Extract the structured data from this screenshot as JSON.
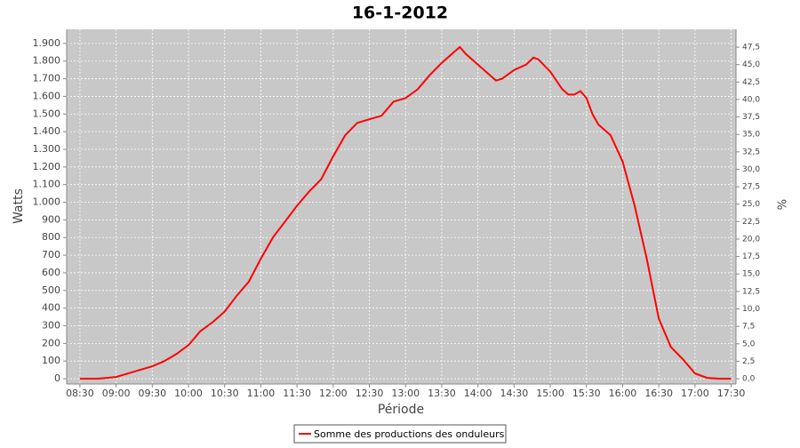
{
  "chart_data": {
    "type": "line",
    "title": "16-1-2012",
    "x_label": "Période",
    "y_label": "Watts",
    "y2_label": "%",
    "x": [
      "08:30",
      "08:45",
      "09:00",
      "09:10",
      "09:20",
      "09:30",
      "09:40",
      "09:50",
      "10:00",
      "10:10",
      "10:20",
      "10:30",
      "10:40",
      "10:50",
      "11:00",
      "11:10",
      "11:20",
      "11:30",
      "11:40",
      "11:50",
      "12:00",
      "12:10",
      "12:20",
      "12:30",
      "12:40",
      "12:50",
      "13:00",
      "13:10",
      "13:20",
      "13:30",
      "13:40",
      "13:45",
      "13:50",
      "14:00",
      "14:10",
      "14:15",
      "14:20",
      "14:30",
      "14:40",
      "14:46",
      "14:50",
      "15:00",
      "15:10",
      "15:15",
      "15:20",
      "15:25",
      "15:30",
      "15:35",
      "15:40",
      "15:50",
      "16:00",
      "16:10",
      "16:20",
      "16:30",
      "16:40",
      "16:50",
      "17:00",
      "17:10",
      "17:20",
      "17:30"
    ],
    "series": [
      {
        "name": "Somme des productions des onduleurs",
        "color": "#ff0000",
        "values": [
          0,
          0,
          10,
          30,
          50,
          70,
          100,
          140,
          190,
          270,
          320,
          380,
          470,
          550,
          680,
          800,
          890,
          980,
          1060,
          1130,
          1260,
          1380,
          1450,
          1470,
          1490,
          1570,
          1590,
          1640,
          1720,
          1790,
          1850,
          1880,
          1840,
          1780,
          1720,
          1690,
          1700,
          1750,
          1780,
          1820,
          1810,
          1740,
          1640,
          1610,
          1610,
          1630,
          1590,
          1500,
          1440,
          1380,
          1230,
          980,
          680,
          340,
          180,
          110,
          30,
          5,
          0,
          0
        ]
      }
    ],
    "xlim": [
      "08:19",
      "17:34"
    ],
    "xticks": [
      "08:30",
      "09:00",
      "09:30",
      "10:00",
      "10:30",
      "11:00",
      "11:30",
      "12:00",
      "12:30",
      "13:00",
      "13:30",
      "14:00",
      "14:30",
      "15:00",
      "15:30",
      "16:00",
      "16:30",
      "17:00",
      "17:30"
    ],
    "ylim": [
      -30,
      1980
    ],
    "yticks": [
      0,
      100,
      200,
      300,
      400,
      500,
      600,
      700,
      800,
      900,
      {
        "value": 1000,
        "label": "1.000"
      },
      {
        "value": 1100,
        "label": "1.100"
      },
      {
        "value": 1200,
        "label": "1.200"
      },
      {
        "value": 1300,
        "label": "1.300"
      },
      {
        "value": 1400,
        "label": "1.400"
      },
      {
        "value": 1500,
        "label": "1.500"
      },
      {
        "value": 1600,
        "label": "1.600"
      },
      {
        "value": 1700,
        "label": "1.700"
      },
      {
        "value": 1800,
        "label": "1.800"
      },
      {
        "value": 1900,
        "label": "1.900"
      }
    ],
    "y2lim": [
      -0.76,
      50.05
    ],
    "y2ticks": [
      {
        "value": 0,
        "label": "0,0"
      },
      {
        "value": 2.5,
        "label": "2,5"
      },
      {
        "value": 5,
        "label": "5,0"
      },
      {
        "value": 7.5,
        "label": "7,5"
      },
      {
        "value": 10,
        "label": "10,0"
      },
      {
        "value": 12.5,
        "label": "12,5"
      },
      {
        "value": 15,
        "label": "15,0"
      },
      {
        "value": 17.5,
        "label": "17,5"
      },
      {
        "value": 20,
        "label": "20,0"
      },
      {
        "value": 22.5,
        "label": "22,5"
      },
      {
        "value": 25,
        "label": "25,0"
      },
      {
        "value": 27.5,
        "label": "27,5"
      },
      {
        "value": 30,
        "label": "30,0"
      },
      {
        "value": 32.5,
        "label": "32,5"
      },
      {
        "value": 35,
        "label": "35,0"
      },
      {
        "value": 37.5,
        "label": "37,5"
      },
      {
        "value": 40,
        "label": "40,0"
      },
      {
        "value": 42.5,
        "label": "42,5"
      },
      {
        "value": 45,
        "label": "45,0"
      },
      {
        "value": 47.5,
        "label": "47,5"
      }
    ],
    "grid": true,
    "legend": "bottom"
  }
}
